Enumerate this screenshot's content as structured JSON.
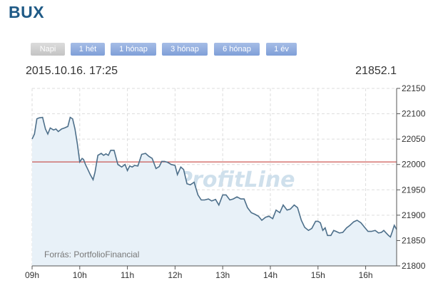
{
  "page_title": "BUX",
  "tabs": [
    {
      "label": "Napi",
      "active": true
    },
    {
      "label": "1 hét",
      "active": false
    },
    {
      "label": "1 hónap",
      "active": false
    },
    {
      "label": "3 hónap",
      "active": false
    },
    {
      "label": "6 hónap",
      "active": false
    },
    {
      "label": "1 év",
      "active": false
    }
  ],
  "info": {
    "datetime": "2015.10.16. 17:25",
    "last_value": "21852.1"
  },
  "watermark": "ProfitLine",
  "source": "Forrás: PortfolioFinancial",
  "colors": {
    "line": "#4d6f8a",
    "fill": "#e8f1f8",
    "reference": "#c0302b",
    "tab": "#8aa8dd",
    "tab_active": "#cfcfcf",
    "title": "#1f5a86"
  },
  "chart_data": {
    "type": "area",
    "title": "",
    "xlabel": "",
    "ylabel": "",
    "x_ticks": [
      "09h",
      "10h",
      "11h",
      "12h",
      "13h",
      "14h",
      "15h",
      "16h"
    ],
    "y_ticks": [
      21800,
      21850,
      21900,
      21950,
      22000,
      22050,
      22100,
      22150
    ],
    "ylim": [
      21800,
      22150
    ],
    "xlim": [
      9.0,
      16.65
    ],
    "y_axis_position": "right",
    "grid": true,
    "reference_line": 22005,
    "series": [
      {
        "x": [
          9.0,
          9.05,
          9.1,
          9.15,
          9.22,
          9.28,
          9.33,
          9.38,
          9.45,
          9.5,
          9.55,
          9.62,
          9.68,
          9.75,
          9.8,
          9.85,
          9.9,
          9.95,
          10.0,
          10.05,
          10.08,
          10.12,
          10.17,
          10.22,
          10.28,
          10.32,
          10.38,
          10.45,
          10.5,
          10.55,
          10.6,
          10.65,
          10.72,
          10.8,
          10.88,
          10.95,
          11.0,
          11.05,
          11.1,
          11.15,
          11.22,
          11.3,
          11.38,
          11.45,
          11.52,
          11.6,
          11.67,
          11.72,
          11.78,
          11.85,
          11.92,
          12.0,
          12.05,
          12.12,
          12.18,
          12.25,
          12.32,
          12.4,
          12.48,
          12.55,
          12.62,
          12.7,
          12.77,
          12.85,
          12.92,
          13.0,
          13.07,
          13.15,
          13.22,
          13.3,
          13.38,
          13.45,
          13.52,
          13.6,
          13.67,
          13.75,
          13.82,
          13.9,
          13.97,
          14.05,
          14.12,
          14.2,
          14.27,
          14.35,
          14.42,
          14.5,
          14.57,
          14.65,
          14.72,
          14.8,
          14.87,
          14.95,
          15.0,
          15.05,
          15.1,
          15.15,
          15.2,
          15.27,
          15.33,
          15.38,
          15.45,
          15.52,
          15.6,
          15.67,
          15.75,
          15.82,
          15.9,
          15.97,
          16.05,
          16.12,
          16.2,
          16.27,
          16.33,
          16.38,
          16.43,
          16.48,
          16.52,
          16.56,
          16.6,
          16.65
        ],
        "values": [
          22050,
          22060,
          22090,
          22092,
          22093,
          22070,
          22060,
          22072,
          22068,
          22070,
          22065,
          22070,
          22072,
          22075,
          22093,
          22090,
          22070,
          22040,
          22005,
          22012,
          22010,
          22000,
          21990,
          21980,
          21970,
          21985,
          22018,
          22022,
          22018,
          22021,
          22018,
          22028,
          22028,
          22000,
          21995,
          22000,
          21988,
          21997,
          21995,
          21998,
          21997,
          22020,
          22022,
          22016,
          22012,
          21992,
          21996,
          22006,
          22006,
          22004,
          22000,
          21998,
          21980,
          21995,
          21990,
          21962,
          21960,
          21965,
          21940,
          21930,
          21930,
          21932,
          21928,
          21931,
          21920,
          21940,
          21940,
          21930,
          21932,
          21936,
          21932,
          21932,
          21915,
          21905,
          21902,
          21898,
          21890,
          21896,
          21898,
          21893,
          21910,
          21905,
          21920,
          21910,
          21912,
          21920,
          21915,
          21890,
          21876,
          21870,
          21874,
          21888,
          21888,
          21885,
          21870,
          21875,
          21860,
          21860,
          21870,
          21868,
          21865,
          21866,
          21875,
          21880,
          21887,
          21890,
          21885,
          21877,
          21868,
          21868,
          21870,
          21865,
          21866,
          21870,
          21865,
          21860,
          21857,
          21868,
          21880,
          21872
        ]
      }
    ]
  }
}
